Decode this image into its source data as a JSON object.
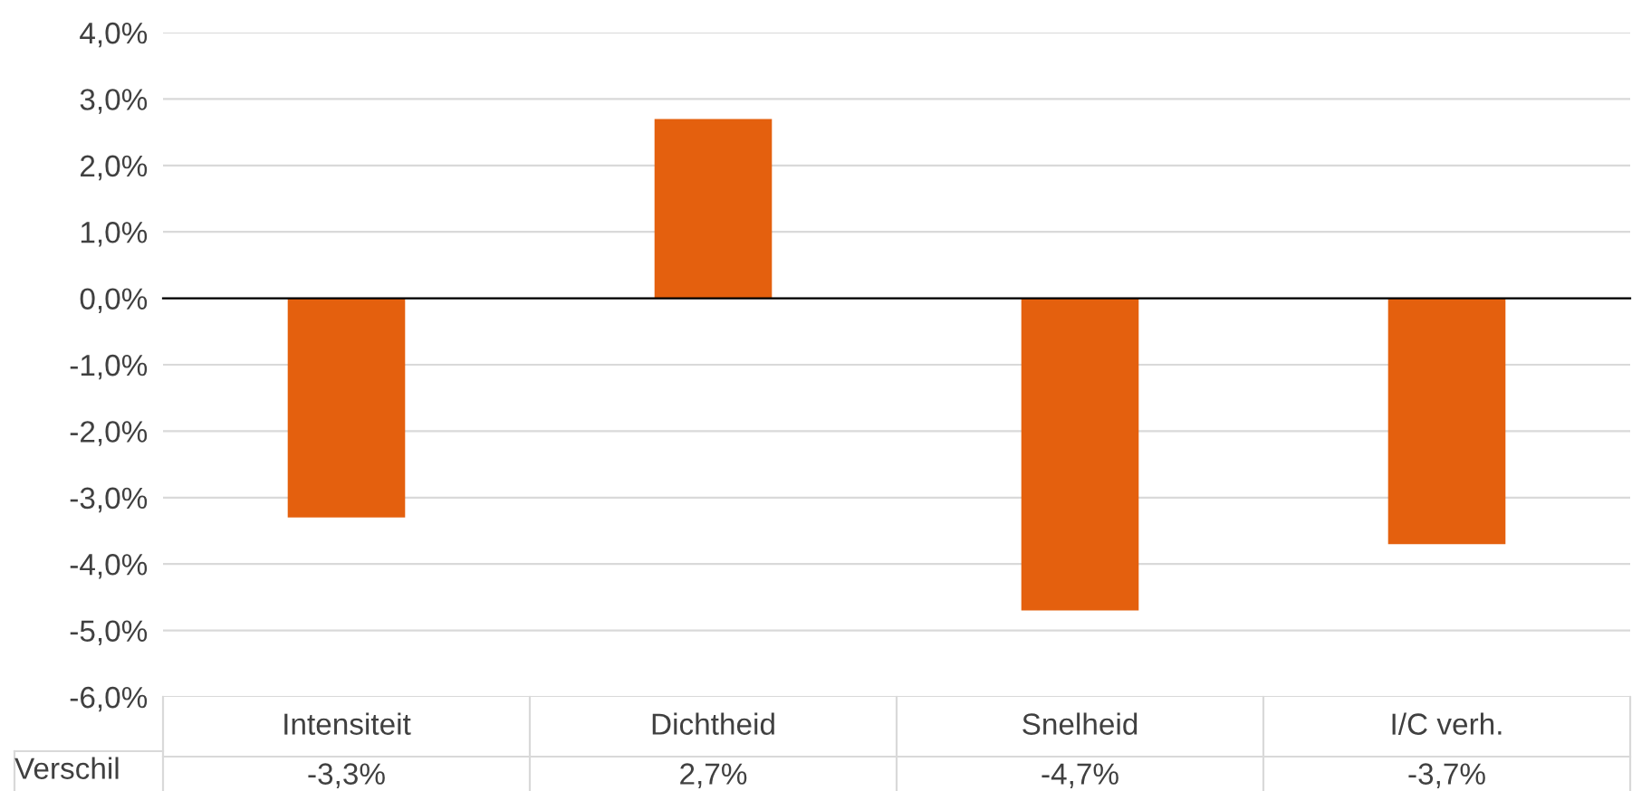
{
  "chart_data": {
    "type": "bar",
    "categories": [
      "Intensiteit",
      "Dichtheid",
      "Snelheid",
      "I/C verh."
    ],
    "series": [
      {
        "name": "Verschil",
        "color": "#e4600e",
        "values": [
          -3.3,
          2.7,
          -4.7,
          -3.7
        ],
        "value_labels": [
          "-3,3%",
          "2,7%",
          "-4,7%",
          "-3,7%"
        ]
      }
    ],
    "ylim": [
      -6,
      4
    ],
    "yticks": [
      {
        "value": -6,
        "label": "-6,0%"
      },
      {
        "value": -5,
        "label": "-5,0%"
      },
      {
        "value": -4,
        "label": "-4,0%"
      },
      {
        "value": -3,
        "label": "-3,0%"
      },
      {
        "value": -2,
        "label": "-2,0%"
      },
      {
        "value": -1,
        "label": "-1,0%"
      },
      {
        "value": 0,
        "label": "0,0%"
      },
      {
        "value": 1,
        "label": "1,0%"
      },
      {
        "value": 2,
        "label": "2,0%"
      },
      {
        "value": 3,
        "label": "3,0%"
      },
      {
        "value": 4,
        "label": "4,0%"
      }
    ],
    "grid": "y"
  }
}
